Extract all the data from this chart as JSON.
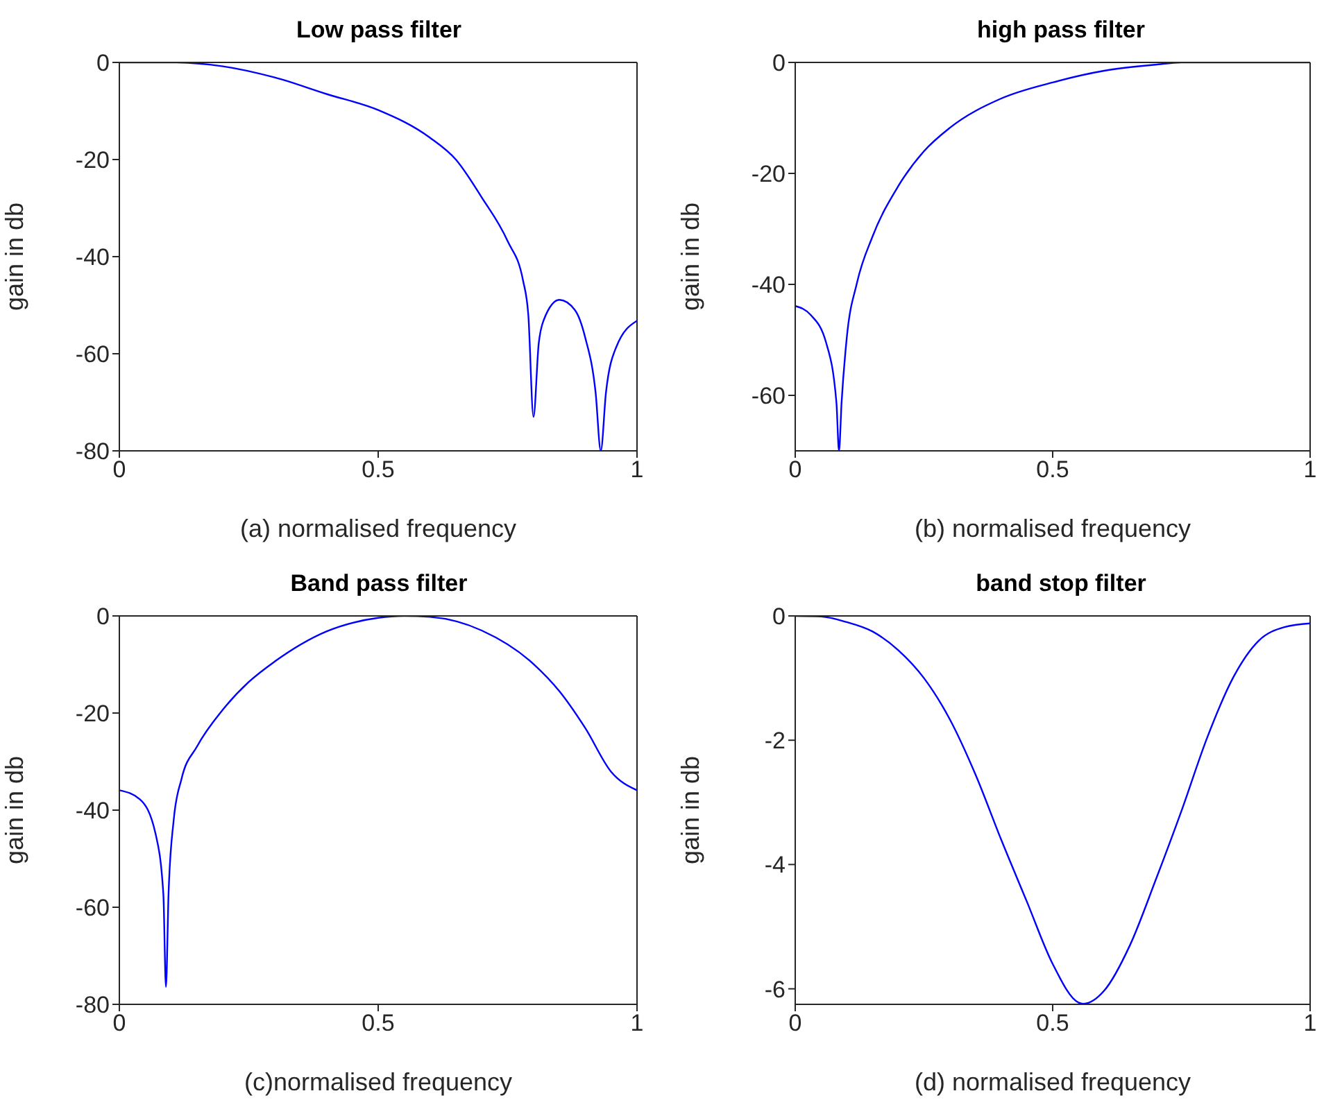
{
  "chart_data": [
    {
      "type": "line",
      "title": "Low pass filter",
      "xlabel": "(a) normalised frequency",
      "ylabel": "gain in db",
      "color": "#0000ff",
      "xlim": [
        0,
        1
      ],
      "ylim": [
        -80,
        0
      ],
      "xticks": [
        0,
        0.5,
        1
      ],
      "yticks": [
        -80,
        -60,
        -40,
        -20,
        0
      ],
      "x": [
        0,
        0.1,
        0.2,
        0.3,
        0.4,
        0.5,
        0.6,
        0.65,
        0.7,
        0.75,
        0.78,
        0.79,
        0.8,
        0.81,
        0.82,
        0.85,
        0.88,
        0.9,
        0.92,
        0.93,
        0.94,
        0.96,
        1.0
      ],
      "values": [
        0,
        0,
        -0.8,
        -3.1,
        -6.5,
        -9.8,
        -15.5,
        -20,
        -27.8,
        -36.8,
        -45,
        -52,
        -73,
        -58,
        -53,
        -48.9,
        -51,
        -56.7,
        -68,
        -80,
        -68,
        -58.6,
        -53.2
      ]
    },
    {
      "type": "line",
      "title": "high pass filter",
      "xlabel": "(b) normalised frequency",
      "ylabel": "gain in db",
      "color": "#0000ff",
      "xlim": [
        0,
        1
      ],
      "ylim": [
        -70,
        0
      ],
      "xticks": [
        0,
        0.5,
        1
      ],
      "yticks": [
        -60,
        -40,
        -20,
        0
      ],
      "x": [
        0,
        0.03,
        0.06,
        0.08,
        0.085,
        0.09,
        0.1,
        0.12,
        0.15,
        0.2,
        0.25,
        0.3,
        0.4,
        0.5,
        0.6,
        0.7,
        0.75,
        0.85,
        1.0
      ],
      "values": [
        -43.9,
        -45.5,
        -50.5,
        -61.3,
        -70,
        -61.3,
        -49.7,
        -39.7,
        -31.4,
        -22.3,
        -16,
        -11.8,
        -6.5,
        -3.6,
        -1.5,
        -0.4,
        0,
        0,
        0
      ]
    },
    {
      "type": "line",
      "title": "Band pass filter",
      "xlabel": "(c)normalised frequency",
      "ylabel": "gain in db",
      "color": "#0000ff",
      "xlim": [
        0,
        1
      ],
      "ylim": [
        -80,
        0
      ],
      "xticks": [
        0,
        0.5,
        1
      ],
      "yticks": [
        -80,
        -60,
        -40,
        -20,
        0
      ],
      "x": [
        0,
        0.04,
        0.07,
        0.085,
        0.09,
        0.095,
        0.105,
        0.12,
        0.15,
        0.2,
        0.25,
        0.3,
        0.4,
        0.5,
        0.55,
        0.6,
        0.7,
        0.8,
        0.85,
        0.9,
        0.95,
        1.0
      ],
      "values": [
        -35.9,
        -37.8,
        -44.9,
        -57.3,
        -76.4,
        -57.3,
        -42,
        -33.6,
        -26.9,
        -19.3,
        -13.6,
        -9.4,
        -3.2,
        -0.4,
        0,
        -0.2,
        -3,
        -9.9,
        -15.5,
        -23.1,
        -32.1,
        -35.9
      ]
    },
    {
      "type": "line",
      "title": "band stop filter",
      "xlabel": "(d) normalised frequency",
      "ylabel": "gain in db",
      "color": "#0000ff",
      "xlim": [
        0,
        1
      ],
      "ylim": [
        -6.25,
        0
      ],
      "xticks": [
        0,
        0.5,
        1
      ],
      "yticks": [
        -6,
        -4,
        -2,
        0
      ],
      "x": [
        0,
        0.05,
        0.1,
        0.15,
        0.2,
        0.25,
        0.3,
        0.35,
        0.4,
        0.45,
        0.5,
        0.55,
        0.56,
        0.6,
        0.65,
        0.7,
        0.75,
        0.8,
        0.85,
        0.9,
        0.95,
        1.0
      ],
      "values": [
        0,
        -0.01,
        -0.1,
        -0.25,
        -0.55,
        -1.0,
        -1.66,
        -2.55,
        -3.6,
        -4.6,
        -5.6,
        -6.22,
        -6.24,
        -6.03,
        -5.3,
        -4.25,
        -3.14,
        -1.96,
        -1.0,
        -0.4,
        -0.18,
        -0.12
      ]
    }
  ]
}
